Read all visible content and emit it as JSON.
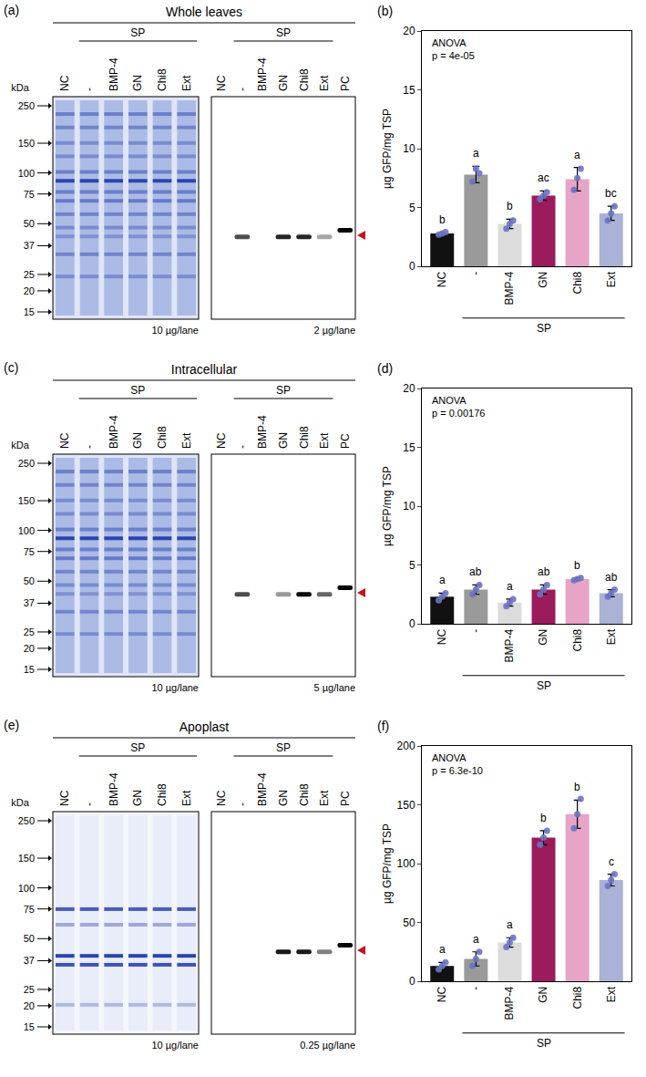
{
  "gels": [
    {
      "letter": "(a)",
      "title": "Whole leaves",
      "group": "SP",
      "stain_lanes": [
        "NC",
        "-",
        "BMP-4",
        "GN",
        "Chi8",
        "Ext"
      ],
      "blot_lanes": [
        "NC",
        "-",
        "BMP-4",
        "GN",
        "Chi8",
        "Ext",
        "PC"
      ],
      "marker_unit": "kDa",
      "markers": [
        250,
        150,
        100,
        75,
        50,
        37,
        25,
        20,
        15
      ],
      "stain_load": "10 µg/lane",
      "blot_load": "2 µg/lane",
      "band_intensity": [
        0,
        0.7,
        0,
        0.85,
        0.85,
        0.35,
        1
      ]
    },
    {
      "letter": "(c)",
      "title": "Intracellular",
      "group": "SP",
      "stain_lanes": [
        "NC",
        "-",
        "BMP-4",
        "GN",
        "Chi8",
        "Ext"
      ],
      "blot_lanes": [
        "NC",
        "-",
        "BMP-4",
        "GN",
        "Chi8",
        "Ext",
        "PC"
      ],
      "marker_unit": "kDa",
      "markers": [
        250,
        150,
        100,
        75,
        50,
        37,
        25,
        20,
        15
      ],
      "stain_load": "10 µg/lane",
      "blot_load": "5 µg/lane",
      "band_intensity": [
        0,
        0.7,
        0,
        0.4,
        1,
        0.6,
        1
      ]
    },
    {
      "letter": "(e)",
      "title": "Apoplast",
      "group": "SP",
      "stain_lanes": [
        "NC",
        "-",
        "BMP-4",
        "GN",
        "Chi8",
        "Ext"
      ],
      "blot_lanes": [
        "NC",
        "-",
        "BMP-4",
        "GN",
        "Chi8",
        "Ext",
        "PC"
      ],
      "marker_unit": "kDa",
      "markers": [
        250,
        150,
        100,
        75,
        50,
        37,
        25,
        20,
        15
      ],
      "stain_load": "10 µg/lane",
      "blot_load": "0.25 µg/lane",
      "band_intensity": [
        0,
        0,
        0,
        0.9,
        0.9,
        0.5,
        1
      ]
    }
  ],
  "chart_data": [
    {
      "type": "bar",
      "letter": "(b)",
      "categories": [
        "NC",
        "-",
        "BMP-4",
        "GN",
        "Chi8",
        "Ext"
      ],
      "group": "SP",
      "grouped": [
        "-",
        "BMP-4",
        "GN",
        "Chi8",
        "Ext"
      ],
      "values": [
        2.8,
        7.8,
        3.6,
        6.0,
        7.4,
        4.5
      ],
      "errors": [
        0.1,
        0.7,
        0.4,
        0.4,
        1.0,
        0.6
      ],
      "points": [
        [
          2.7,
          2.8,
          2.9
        ],
        [
          7.2,
          8.3,
          7.9
        ],
        [
          3.2,
          3.6,
          3.9
        ],
        [
          5.7,
          6.0,
          6.3
        ],
        [
          6.5,
          7.5,
          8.3
        ],
        [
          3.9,
          4.5,
          5.1
        ]
      ],
      "colors": [
        "#111111",
        "#9a9a9a",
        "#dcdcdc",
        "#9b1b5c",
        "#e6a5c7",
        "#aab2d6"
      ],
      "points_color": "#6b74c4",
      "ylabel": "µg GFP/mg TSP",
      "ylim": [
        0,
        20
      ],
      "yticks": [
        0,
        5,
        10,
        15,
        20
      ],
      "stat_title": "ANOVA",
      "stat_text": "p = 4e-05",
      "letters": [
        "b",
        "a",
        "b",
        "ac",
        "a",
        "bc"
      ]
    },
    {
      "type": "bar",
      "letter": "(d)",
      "categories": [
        "NC",
        "-",
        "BMP-4",
        "GN",
        "Chi8",
        "Ext"
      ],
      "group": "SP",
      "grouped": [
        "-",
        "BMP-4",
        "GN",
        "Chi8",
        "Ext"
      ],
      "values": [
        2.3,
        2.9,
        1.8,
        2.9,
        3.8,
        2.6
      ],
      "errors": [
        0.3,
        0.4,
        0.3,
        0.4,
        0.1,
        0.3
      ],
      "points": [
        [
          2.0,
          2.3,
          2.6
        ],
        [
          2.5,
          2.9,
          3.3
        ],
        [
          1.5,
          1.8,
          2.1
        ],
        [
          2.5,
          2.9,
          3.3
        ],
        [
          3.7,
          3.8,
          3.9
        ],
        [
          2.3,
          2.6,
          2.9
        ]
      ],
      "colors": [
        "#111111",
        "#9a9a9a",
        "#dcdcdc",
        "#9b1b5c",
        "#e6a5c7",
        "#aab2d6"
      ],
      "points_color": "#6b74c4",
      "ylabel": "µg GFP/mg TSP",
      "ylim": [
        0,
        20
      ],
      "yticks": [
        0,
        5,
        10,
        15,
        20
      ],
      "stat_title": "ANOVA",
      "stat_text": "p = 0.00176",
      "letters": [
        "a",
        "ab",
        "a",
        "ab",
        "b",
        "ab"
      ]
    },
    {
      "type": "bar",
      "letter": "(f)",
      "categories": [
        "NC",
        "-",
        "BMP-4",
        "GN",
        "Chi8",
        "Ext"
      ],
      "group": "SP",
      "grouped": [
        "-",
        "BMP-4",
        "GN",
        "Chi8",
        "Ext"
      ],
      "values": [
        13,
        19,
        33,
        122,
        142,
        86
      ],
      "errors": [
        3,
        6,
        4,
        6,
        12,
        5
      ],
      "points": [
        [
          10,
          13,
          16
        ],
        [
          13,
          19,
          25
        ],
        [
          29,
          33,
          37
        ],
        [
          116,
          122,
          128
        ],
        [
          130,
          142,
          155
        ],
        [
          81,
          86,
          91
        ]
      ],
      "colors": [
        "#111111",
        "#9a9a9a",
        "#dcdcdc",
        "#9b1b5c",
        "#e6a5c7",
        "#aab2d6"
      ],
      "points_color": "#6b74c4",
      "ylabel": "µg GFP/mg TSP",
      "ylim": [
        0,
        200
      ],
      "yticks": [
        0,
        50,
        100,
        150,
        200
      ],
      "stat_title": "ANOVA",
      "stat_text": "p = 6.3e-10",
      "letters": [
        "a",
        "a",
        "a",
        "b",
        "b",
        "c"
      ]
    }
  ]
}
